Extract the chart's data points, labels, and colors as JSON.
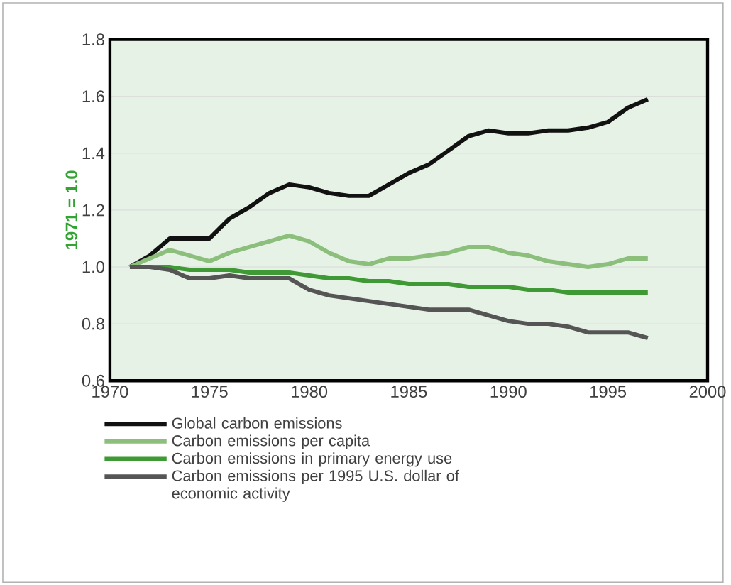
{
  "chart_data": {
    "type": "line",
    "ylabel": "1971 = 1.0",
    "x": [
      1971,
      1972,
      1973,
      1974,
      1975,
      1976,
      1977,
      1978,
      1979,
      1980,
      1981,
      1982,
      1983,
      1984,
      1985,
      1986,
      1987,
      1988,
      1989,
      1990,
      1991,
      1992,
      1993,
      1994,
      1995,
      1996,
      1997
    ],
    "xlim": [
      1970,
      2000
    ],
    "xticks": [
      1970,
      1975,
      1980,
      1985,
      1990,
      1995,
      2000
    ],
    "ylim": [
      0.6,
      1.8
    ],
    "yticks": [
      {
        "value": 0.6,
        "label": "0.6"
      },
      {
        "value": 0.8,
        "label": "0.8"
      },
      {
        "value": 1.0,
        "label": "1.0"
      },
      {
        "value": 1.2,
        "label": "1.2"
      },
      {
        "value": 1.4,
        "label": "1.4"
      },
      {
        "value": 1.6,
        "label": "1.6"
      },
      {
        "value": 1.8,
        "label": "1.8"
      }
    ],
    "grid": "y",
    "legend": "bottom",
    "marker": "none",
    "line_style": "solid",
    "series": [
      {
        "name": "Global carbon emissions",
        "color": "#111111",
        "values": [
          1.0,
          1.04,
          1.1,
          1.1,
          1.1,
          1.17,
          1.21,
          1.26,
          1.29,
          1.28,
          1.26,
          1.25,
          1.25,
          1.29,
          1.33,
          1.36,
          1.41,
          1.46,
          1.48,
          1.47,
          1.47,
          1.48,
          1.48,
          1.49,
          1.51,
          1.56,
          1.59
        ]
      },
      {
        "name": "Carbon emissions per capita",
        "color": "#8cbf7c",
        "values": [
          1.0,
          1.03,
          1.06,
          1.04,
          1.02,
          1.05,
          1.07,
          1.09,
          1.11,
          1.09,
          1.05,
          1.02,
          1.01,
          1.03,
          1.03,
          1.04,
          1.05,
          1.07,
          1.07,
          1.05,
          1.04,
          1.02,
          1.01,
          1.0,
          1.01,
          1.03,
          1.03
        ]
      },
      {
        "name": "Carbon emissions in primary energy use",
        "color": "#3f9a35",
        "values": [
          1.0,
          1.0,
          1.0,
          0.99,
          0.99,
          0.99,
          0.98,
          0.98,
          0.98,
          0.97,
          0.96,
          0.96,
          0.95,
          0.95,
          0.94,
          0.94,
          0.94,
          0.93,
          0.93,
          0.93,
          0.92,
          0.92,
          0.91,
          0.91,
          0.91,
          0.91,
          0.91
        ]
      },
      {
        "name": "Carbon emissions per 1995 U.S. dollar of economic activity",
        "color": "#555555",
        "values": [
          1.0,
          1.0,
          0.99,
          0.96,
          0.96,
          0.97,
          0.96,
          0.96,
          0.96,
          0.92,
          0.9,
          0.89,
          0.88,
          0.87,
          0.86,
          0.85,
          0.85,
          0.85,
          0.83,
          0.81,
          0.8,
          0.8,
          0.79,
          0.77,
          0.77,
          0.77,
          0.75
        ]
      }
    ]
  }
}
